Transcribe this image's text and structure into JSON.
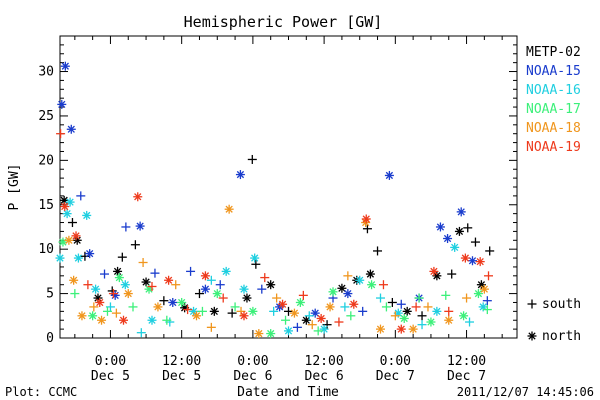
{
  "chart_data": {
    "type": "scatter",
    "title": "Hemispheric Power [GW]",
    "ylabel": "P [GW]",
    "xlabel": "Date and Time",
    "ylim": [
      0,
      34
    ],
    "yticks": [
      0,
      5,
      10,
      15,
      20,
      25,
      30
    ],
    "xlim_hours": [
      -8.5,
      68.5
    ],
    "xticks": [
      {
        "time": "0:00",
        "date": "Dec 5",
        "hours": 0
      },
      {
        "time": "12:00",
        "date": "Dec 5",
        "hours": 12
      },
      {
        "time": "0:00",
        "date": "Dec 6",
        "hours": 24
      },
      {
        "time": "12:00",
        "date": "Dec 6",
        "hours": 36
      },
      {
        "time": "0:00",
        "date": "Dec 7",
        "hours": 48
      },
      {
        "time": "12:00",
        "date": "Dec 7",
        "hours": 60
      }
    ],
    "legend": {
      "placement": "right",
      "markers": [
        {
          "symbol": "+",
          "label": "south"
        },
        {
          "symbol": "*",
          "label": "north"
        }
      ]
    },
    "series": [
      {
        "name": "METP-02",
        "color": "#000000",
        "points": [
          {
            "x": -7.8,
            "y": 15.5,
            "m": "n"
          },
          {
            "x": -6.4,
            "y": 13.0,
            "m": "p"
          },
          {
            "x": -5.6,
            "y": 11.0,
            "m": "n"
          },
          {
            "x": -4.3,
            "y": 9.2,
            "m": "p"
          },
          {
            "x": -2.1,
            "y": 4.5,
            "m": "n"
          },
          {
            "x": 0.3,
            "y": 5.3,
            "m": "p"
          },
          {
            "x": 1.2,
            "y": 7.5,
            "m": "n"
          },
          {
            "x": 2.0,
            "y": 9.1,
            "m": "p"
          },
          {
            "x": 4.2,
            "y": 10.5,
            "m": "p"
          },
          {
            "x": 6.0,
            "y": 6.3,
            "m": "n"
          },
          {
            "x": 9.0,
            "y": 4.2,
            "m": "p"
          },
          {
            "x": 12.5,
            "y": 3.4,
            "m": "n"
          },
          {
            "x": 15.0,
            "y": 5.0,
            "m": "p"
          },
          {
            "x": 17.5,
            "y": 3.0,
            "m": "n"
          },
          {
            "x": 20.5,
            "y": 2.8,
            "m": "p"
          },
          {
            "x": 23.0,
            "y": 4.5,
            "m": "n"
          },
          {
            "x": 23.9,
            "y": 20.1,
            "m": "p"
          },
          {
            "x": 24.5,
            "y": 8.3,
            "m": "p"
          },
          {
            "x": 27.0,
            "y": 6.0,
            "m": "n"
          },
          {
            "x": 30.0,
            "y": 3.0,
            "m": "p"
          },
          {
            "x": 33.0,
            "y": 2.0,
            "m": "n"
          },
          {
            "x": 36.5,
            "y": 1.5,
            "m": "p"
          },
          {
            "x": 39.0,
            "y": 5.6,
            "m": "n"
          },
          {
            "x": 41.5,
            "y": 6.5,
            "m": "n"
          },
          {
            "x": 43.3,
            "y": 12.3,
            "m": "p"
          },
          {
            "x": 45.0,
            "y": 9.8,
            "m": "p"
          },
          {
            "x": 43.8,
            "y": 7.2,
            "m": "n"
          },
          {
            "x": 47.5,
            "y": 4.0,
            "m": "p"
          },
          {
            "x": 50.0,
            "y": 3.0,
            "m": "n"
          },
          {
            "x": 52.5,
            "y": 2.5,
            "m": "p"
          },
          {
            "x": 55.0,
            "y": 7.0,
            "m": "n"
          },
          {
            "x": 57.5,
            "y": 7.2,
            "m": "p"
          },
          {
            "x": 58.8,
            "y": 12.0,
            "m": "n"
          },
          {
            "x": 60.2,
            "y": 12.4,
            "m": "p"
          },
          {
            "x": 61.5,
            "y": 10.8,
            "m": "p"
          },
          {
            "x": 62.5,
            "y": 6.0,
            "m": "n"
          },
          {
            "x": 63.9,
            "y": 9.8,
            "m": "p"
          }
        ]
      },
      {
        "name": "NOAA-15",
        "color": "#1a3ccd",
        "points": [
          {
            "x": -8.2,
            "y": 26.3,
            "m": "n"
          },
          {
            "x": -7.6,
            "y": 30.6,
            "m": "n"
          },
          {
            "x": -6.6,
            "y": 23.5,
            "m": "n"
          },
          {
            "x": -5.0,
            "y": 16.0,
            "m": "p"
          },
          {
            "x": -3.5,
            "y": 9.5,
            "m": "n"
          },
          {
            "x": -1.0,
            "y": 7.2,
            "m": "p"
          },
          {
            "x": 0.8,
            "y": 4.8,
            "m": "n"
          },
          {
            "x": 2.6,
            "y": 12.5,
            "m": "p"
          },
          {
            "x": 5.0,
            "y": 12.6,
            "m": "n"
          },
          {
            "x": 7.5,
            "y": 7.3,
            "m": "p"
          },
          {
            "x": 10.5,
            "y": 4.0,
            "m": "n"
          },
          {
            "x": 13.5,
            "y": 7.5,
            "m": "p"
          },
          {
            "x": 16.0,
            "y": 5.5,
            "m": "n"
          },
          {
            "x": 18.5,
            "y": 6.0,
            "m": "p"
          },
          {
            "x": 21.9,
            "y": 18.4,
            "m": "n"
          },
          {
            "x": 25.5,
            "y": 5.5,
            "m": "p"
          },
          {
            "x": 28.5,
            "y": 3.5,
            "m": "n"
          },
          {
            "x": 31.5,
            "y": 1.2,
            "m": "p"
          },
          {
            "x": 34.5,
            "y": 2.8,
            "m": "n"
          },
          {
            "x": 37.5,
            "y": 4.5,
            "m": "p"
          },
          {
            "x": 40.0,
            "y": 5.0,
            "m": "n"
          },
          {
            "x": 42.5,
            "y": 3.0,
            "m": "p"
          },
          {
            "x": 47.0,
            "y": 18.3,
            "m": "n"
          },
          {
            "x": 49.0,
            "y": 3.8,
            "m": "p"
          },
          {
            "x": 52.0,
            "y": 4.5,
            "m": "n"
          },
          {
            "x": 55.6,
            "y": 12.5,
            "m": "n"
          },
          {
            "x": 56.8,
            "y": 11.2,
            "m": "n"
          },
          {
            "x": 59.1,
            "y": 14.2,
            "m": "n"
          },
          {
            "x": 61.0,
            "y": 8.7,
            "m": "n"
          },
          {
            "x": 63.5,
            "y": 4.2,
            "m": "p"
          }
        ]
      },
      {
        "name": "NOAA-16",
        "color": "#1fcfe0",
        "points": [
          {
            "x": -8.5,
            "y": 9.0,
            "m": "n"
          },
          {
            "x": -7.3,
            "y": 14.0,
            "m": "n"
          },
          {
            "x": -6.8,
            "y": 15.3,
            "m": "n"
          },
          {
            "x": -5.4,
            "y": 9.0,
            "m": "n"
          },
          {
            "x": -4.0,
            "y": 13.8,
            "m": "n"
          },
          {
            "x": -2.5,
            "y": 5.5,
            "m": "n"
          },
          {
            "x": 0.0,
            "y": 3.5,
            "m": "p"
          },
          {
            "x": 2.5,
            "y": 6.0,
            "m": "n"
          },
          {
            "x": 5.2,
            "y": 0.6,
            "m": "p"
          },
          {
            "x": 7.0,
            "y": 2.0,
            "m": "n"
          },
          {
            "x": 10.0,
            "y": 1.8,
            "m": "p"
          },
          {
            "x": 14.0,
            "y": 3.0,
            "m": "n"
          },
          {
            "x": 17.0,
            "y": 6.5,
            "m": "p"
          },
          {
            "x": 19.5,
            "y": 7.5,
            "m": "n"
          },
          {
            "x": 22.5,
            "y": 5.5,
            "m": "n"
          },
          {
            "x": 24.3,
            "y": 9.0,
            "m": "n"
          },
          {
            "x": 27.5,
            "y": 3.0,
            "m": "p"
          },
          {
            "x": 30.0,
            "y": 0.8,
            "m": "n"
          },
          {
            "x": 33.5,
            "y": 2.5,
            "m": "p"
          },
          {
            "x": 36.0,
            "y": 1.0,
            "m": "n"
          },
          {
            "x": 39.5,
            "y": 3.5,
            "m": "p"
          },
          {
            "x": 42.0,
            "y": 6.5,
            "m": "n"
          },
          {
            "x": 45.5,
            "y": 4.5,
            "m": "p"
          },
          {
            "x": 48.5,
            "y": 2.8,
            "m": "n"
          },
          {
            "x": 52.5,
            "y": 1.5,
            "m": "p"
          },
          {
            "x": 55.0,
            "y": 3.0,
            "m": "n"
          },
          {
            "x": 58.0,
            "y": 10.2,
            "m": "n"
          },
          {
            "x": 60.5,
            "y": 1.8,
            "m": "p"
          },
          {
            "x": 62.8,
            "y": 3.5,
            "m": "n"
          }
        ]
      },
      {
        "name": "NOAA-17",
        "color": "#3cf07a",
        "points": [
          {
            "x": -8.0,
            "y": 10.8,
            "m": "n"
          },
          {
            "x": -6.0,
            "y": 5.0,
            "m": "p"
          },
          {
            "x": -3.0,
            "y": 2.5,
            "m": "n"
          },
          {
            "x": -0.5,
            "y": 3.0,
            "m": "p"
          },
          {
            "x": 1.5,
            "y": 6.8,
            "m": "n"
          },
          {
            "x": 3.8,
            "y": 3.5,
            "m": "p"
          },
          {
            "x": 6.5,
            "y": 5.5,
            "m": "n"
          },
          {
            "x": 9.5,
            "y": 2.0,
            "m": "p"
          },
          {
            "x": 12.0,
            "y": 4.0,
            "m": "n"
          },
          {
            "x": 15.5,
            "y": 3.0,
            "m": "p"
          },
          {
            "x": 18.0,
            "y": 5.0,
            "m": "n"
          },
          {
            "x": 21.0,
            "y": 3.5,
            "m": "p"
          },
          {
            "x": 24.0,
            "y": 3.0,
            "m": "n"
          },
          {
            "x": 27.0,
            "y": 0.5,
            "m": "n"
          },
          {
            "x": 29.5,
            "y": 2.0,
            "m": "p"
          },
          {
            "x": 32.0,
            "y": 4.0,
            "m": "n"
          },
          {
            "x": 35.0,
            "y": 0.8,
            "m": "p"
          },
          {
            "x": 37.5,
            "y": 5.2,
            "m": "n"
          },
          {
            "x": 40.5,
            "y": 2.5,
            "m": "p"
          },
          {
            "x": 44.0,
            "y": 6.0,
            "m": "n"
          },
          {
            "x": 46.5,
            "y": 3.5,
            "m": "p"
          },
          {
            "x": 49.5,
            "y": 2.2,
            "m": "n"
          },
          {
            "x": 52.0,
            "y": 4.5,
            "m": "p"
          },
          {
            "x": 54.0,
            "y": 1.8,
            "m": "n"
          },
          {
            "x": 56.5,
            "y": 4.8,
            "m": "p"
          },
          {
            "x": 59.5,
            "y": 2.5,
            "m": "n"
          },
          {
            "x": 62.0,
            "y": 5.0,
            "m": "n"
          },
          {
            "x": 63.5,
            "y": 3.2,
            "m": "p"
          }
        ]
      },
      {
        "name": "NOAA-18",
        "color": "#f0961e",
        "points": [
          {
            "x": -7.0,
            "y": 11.0,
            "m": "n"
          },
          {
            "x": -6.2,
            "y": 6.5,
            "m": "n"
          },
          {
            "x": -4.8,
            "y": 2.5,
            "m": "n"
          },
          {
            "x": -2.8,
            "y": 3.5,
            "m": "p"
          },
          {
            "x": -1.5,
            "y": 2.0,
            "m": "n"
          },
          {
            "x": 1.0,
            "y": 2.8,
            "m": "p"
          },
          {
            "x": 3.0,
            "y": 5.0,
            "m": "n"
          },
          {
            "x": 5.5,
            "y": 8.5,
            "m": "p"
          },
          {
            "x": 8.0,
            "y": 3.5,
            "m": "n"
          },
          {
            "x": 11.0,
            "y": 6.0,
            "m": "p"
          },
          {
            "x": 14.5,
            "y": 2.5,
            "m": "n"
          },
          {
            "x": 17.0,
            "y": 1.2,
            "m": "p"
          },
          {
            "x": 20.0,
            "y": 14.5,
            "m": "n"
          },
          {
            "x": 22.0,
            "y": 3.0,
            "m": "p"
          },
          {
            "x": 25.0,
            "y": 0.5,
            "m": "n"
          },
          {
            "x": 28.0,
            "y": 4.5,
            "m": "p"
          },
          {
            "x": 31.0,
            "y": 2.8,
            "m": "n"
          },
          {
            "x": 34.0,
            "y": 1.5,
            "m": "p"
          },
          {
            "x": 37.0,
            "y": 3.5,
            "m": "n"
          },
          {
            "x": 40.0,
            "y": 7.0,
            "m": "p"
          },
          {
            "x": 43.0,
            "y": 13.0,
            "m": "n"
          },
          {
            "x": 45.5,
            "y": 1.0,
            "m": "n"
          },
          {
            "x": 48.0,
            "y": 2.5,
            "m": "p"
          },
          {
            "x": 51.0,
            "y": 1.0,
            "m": "n"
          },
          {
            "x": 53.5,
            "y": 3.5,
            "m": "p"
          },
          {
            "x": 57.0,
            "y": 2.0,
            "m": "n"
          },
          {
            "x": 60.0,
            "y": 4.5,
            "m": "p"
          },
          {
            "x": 63.0,
            "y": 5.5,
            "m": "n"
          }
        ]
      },
      {
        "name": "NOAA-19",
        "color": "#ee3a1c",
        "points": [
          {
            "x": -8.4,
            "y": 23.0,
            "m": "p"
          },
          {
            "x": -7.7,
            "y": 14.8,
            "m": "n"
          },
          {
            "x": -5.8,
            "y": 11.5,
            "m": "n"
          },
          {
            "x": -3.8,
            "y": 6.0,
            "m": "p"
          },
          {
            "x": -1.8,
            "y": 4.0,
            "m": "n"
          },
          {
            "x": 0.5,
            "y": 5.0,
            "m": "p"
          },
          {
            "x": 2.2,
            "y": 2.0,
            "m": "n"
          },
          {
            "x": 4.6,
            "y": 15.9,
            "m": "n"
          },
          {
            "x": 7.0,
            "y": 5.8,
            "m": "p"
          },
          {
            "x": 9.8,
            "y": 6.5,
            "m": "n"
          },
          {
            "x": 13.0,
            "y": 3.2,
            "m": "p"
          },
          {
            "x": 16.0,
            "y": 7.0,
            "m": "n"
          },
          {
            "x": 19.0,
            "y": 4.5,
            "m": "p"
          },
          {
            "x": 22.5,
            "y": 2.5,
            "m": "n"
          },
          {
            "x": 26.0,
            "y": 6.8,
            "m": "p"
          },
          {
            "x": 29.0,
            "y": 3.8,
            "m": "n"
          },
          {
            "x": 32.5,
            "y": 4.8,
            "m": "p"
          },
          {
            "x": 35.5,
            "y": 2.2,
            "m": "n"
          },
          {
            "x": 38.5,
            "y": 1.8,
            "m": "p"
          },
          {
            "x": 41.0,
            "y": 3.8,
            "m": "n"
          },
          {
            "x": 43.1,
            "y": 13.4,
            "m": "n"
          },
          {
            "x": 46.0,
            "y": 6.0,
            "m": "p"
          },
          {
            "x": 49.0,
            "y": 1.0,
            "m": "n"
          },
          {
            "x": 51.5,
            "y": 3.5,
            "m": "p"
          },
          {
            "x": 54.5,
            "y": 7.5,
            "m": "n"
          },
          {
            "x": 57.0,
            "y": 3.0,
            "m": "p"
          },
          {
            "x": 59.8,
            "y": 9.0,
            "m": "n"
          },
          {
            "x": 62.3,
            "y": 8.6,
            "m": "n"
          },
          {
            "x": 63.7,
            "y": 7.0,
            "m": "p"
          }
        ]
      }
    ]
  },
  "footer": {
    "plot_credit": "Plot: CCMC",
    "timestamp": "2011/12/07 14:45:06"
  }
}
